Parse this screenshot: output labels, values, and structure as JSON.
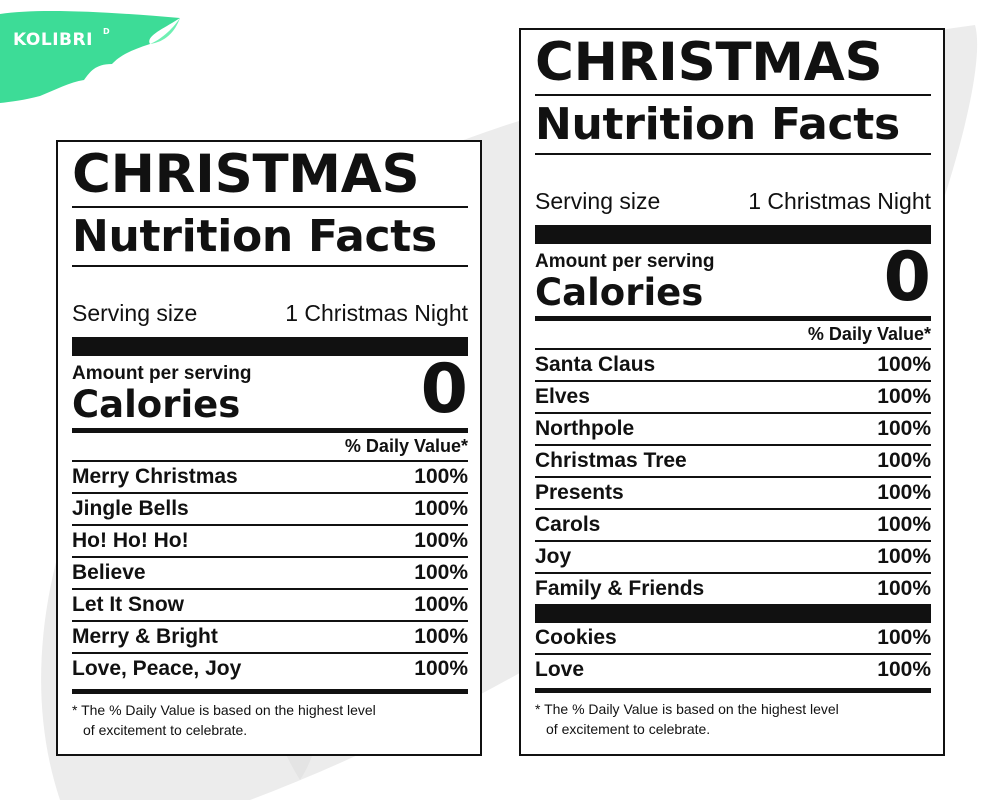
{
  "brand": {
    "logo_text": "KOLIBRI",
    "logo_superscript": "D"
  },
  "colors": {
    "accent_green": "#3ddc97",
    "ink": "#111111",
    "backdrop": "#ececec"
  },
  "left_label": {
    "title": "CHRISTMAS",
    "subtitle": "Nutrition Facts",
    "serving_label": "Serving size",
    "serving_value": "1 Christmas Night",
    "amount_label": "Amount per serving",
    "calories_label": "Calories",
    "calories_value": "0",
    "daily_value_header": "% Daily Value*",
    "items": [
      {
        "name": "Merry Christmas",
        "value": "100%"
      },
      {
        "name": "Jingle Bells",
        "value": "100%"
      },
      {
        "name": "Ho! Ho! Ho!",
        "value": "100%"
      },
      {
        "name": "Believe",
        "value": "100%"
      },
      {
        "name": "Let It Snow",
        "value": "100%"
      },
      {
        "name": "Merry & Bright",
        "value": "100%"
      },
      {
        "name": "Love, Peace, Joy",
        "value": "100%"
      }
    ],
    "footnote_line1": "* The % Daily Value is based on the highest level",
    "footnote_line2": "of excitement to celebrate."
  },
  "right_label": {
    "title": "CHRISTMAS",
    "subtitle": "Nutrition Facts",
    "serving_label": "Serving size",
    "serving_value": "1 Christmas Night",
    "amount_label": "Amount per serving",
    "calories_label": "Calories",
    "calories_value": "0",
    "daily_value_header": "% Daily Value*",
    "items": [
      {
        "name": "Santa Claus",
        "value": "100%"
      },
      {
        "name": "Elves",
        "value": "100%"
      },
      {
        "name": "Northpole",
        "value": "100%"
      },
      {
        "name": "Christmas Tree",
        "value": "100%"
      },
      {
        "name": "Presents",
        "value": "100%"
      },
      {
        "name": "Carols",
        "value": "100%"
      },
      {
        "name": "Joy",
        "value": "100%"
      },
      {
        "name": "Family & Friends",
        "value": "100%"
      }
    ],
    "extra_items": [
      {
        "name": "Cookies",
        "value": "100%"
      },
      {
        "name": "Love",
        "value": "100%"
      }
    ],
    "footnote_line1": "* The % Daily Value is based on the highest level",
    "footnote_line2": "of excitement to celebrate."
  }
}
